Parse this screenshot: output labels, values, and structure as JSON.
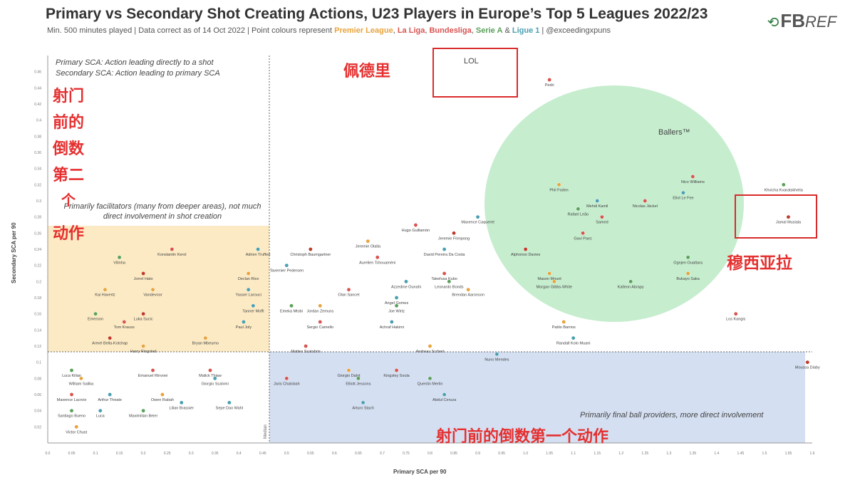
{
  "header": {
    "title": "Primary vs Secondary Shot Creating Actions, U23 Players in Europe’s Top 5 Leagues 2022/23",
    "subtitle_prefix": "Min. 500 minutes played | Data correct as of 14 Oct 2022 | Point colours represent ",
    "league_pl": "Premier League",
    "sep1": ", ",
    "league_ll": "La Liga",
    "sep2": ", ",
    "league_bl": "Bundesliga",
    "sep3": ", ",
    "league_sa": "Serie A",
    "sep4": " & ",
    "league_l1": "Ligue 1",
    "subtitle_suffix": " | @exceedingxpuns",
    "logo_fb": "FB",
    "logo_ref": "REF"
  },
  "colors": {
    "premier_league": "#e8a33c",
    "la_liga": "#d9534f",
    "bundesliga": "#c0392b",
    "serie_a": "#5aa05a",
    "ligue_1": "#4a9fb0",
    "annotation_red": "#e53030",
    "ballers_fill": "#a8e3b4",
    "facilitators_fill": "#fbe3b0",
    "providers_fill": "#c9d7ee"
  },
  "annotations": {
    "definition_primary": "Primary SCA: Action leading directly to a shot",
    "definition_secondary": "Secondary SCA: Action leading to primary SCA",
    "facilitators": "Primarily facilitators (many from deeper areas), not much direct involvement in shot creation",
    "providers": "Primarily final ball providers, more direct involvement",
    "ballers": "Ballers™",
    "lol": "LOL",
    "avg_label": "Median"
  },
  "chinese_labels": {
    "pedri": "佩德里",
    "secondary_col": [
      "射门",
      "前的",
      "倒数",
      "第二",
      "个",
      "动作"
    ],
    "primary": "射门前的倒数第一个动作",
    "musiala": "穆西亚拉"
  },
  "chart_data": {
    "type": "scatter",
    "title": "Primary vs Secondary Shot Creating Actions, U23 Players in Europe’s Top 5 Leagues 2022/23",
    "xlabel": "Primary SCA per 90",
    "ylabel": "Secondary SCA per 90",
    "xlim": [
      0.0,
      1.6
    ],
    "ylim": [
      0.0,
      0.48
    ],
    "x_ticks": [
      "0.0",
      "0.05",
      "0.1",
      "0.15",
      "0.2",
      "0.25",
      "0.3",
      "0.35",
      "0.4",
      "0.45",
      "0.5",
      "0.55",
      "0.6",
      "0.65",
      "0.7",
      "0.75",
      "0.8",
      "0.85",
      "0.9",
      "0.95",
      "1.0",
      "1.05",
      "1.1",
      "1.15",
      "1.2",
      "1.25",
      "1.3",
      "1.35",
      "1.4",
      "1.45",
      "1.5",
      "1.55",
      "1.6"
    ],
    "y_ticks": [
      "0.02",
      "0.04",
      "0.06",
      "0.08",
      "0.1",
      "0.12",
      "0.14",
      "0.16",
      "0.18",
      "0.2",
      "0.22",
      "0.24",
      "0.26",
      "0.28",
      "0.3",
      "0.32",
      "0.34",
      "0.36",
      "0.38",
      "0.4",
      "0.42",
      "0.44",
      "0.46"
    ],
    "median_x": 0.45,
    "median_y": 0.12,
    "points": [
      {
        "name": "Pedri",
        "league": "la_liga",
        "x": 1.05,
        "y": 0.45
      },
      {
        "name": "Nico Williams",
        "league": "la_liga",
        "x": 1.35,
        "y": 0.33
      },
      {
        "name": "Khvicha Kvaratskhelia",
        "league": "serie_a",
        "x": 1.54,
        "y": 0.32
      },
      {
        "name": "Phil Foden",
        "league": "premier_league",
        "x": 1.07,
        "y": 0.32
      },
      {
        "name": "Eliot Le Fee",
        "league": "ligue_1",
        "x": 1.33,
        "y": 0.31
      },
      {
        "name": "Mehdi Kamil",
        "league": "ligue_1",
        "x": 1.15,
        "y": 0.3
      },
      {
        "name": "Nicolas Jäckel",
        "league": "la_liga",
        "x": 1.25,
        "y": 0.3
      },
      {
        "name": "Rafael Leão",
        "league": "serie_a",
        "x": 1.11,
        "y": 0.29
      },
      {
        "name": "Jamal Musiala",
        "league": "bundesliga",
        "x": 1.55,
        "y": 0.28
      },
      {
        "name": "Samed",
        "league": "la_liga",
        "x": 1.16,
        "y": 0.28
      },
      {
        "name": "Gavi Paez",
        "league": "la_liga",
        "x": 1.12,
        "y": 0.26
      },
      {
        "name": "Hugo Guillamón",
        "league": "la_liga",
        "x": 0.77,
        "y": 0.27
      },
      {
        "name": "Jeremie Frimpong",
        "league": "bundesliga",
        "x": 0.85,
        "y": 0.26
      },
      {
        "name": "Maxence Caqueret",
        "league": "ligue_1",
        "x": 0.9,
        "y": 0.28
      },
      {
        "name": "Alphonso Davies",
        "league": "bundesliga",
        "x": 1.0,
        "y": 0.24
      },
      {
        "name": "Jeremie Olalla",
        "league": "premier_league",
        "x": 0.67,
        "y": 0.25
      },
      {
        "name": "David Pereira Da Costa",
        "league": "ligue_1",
        "x": 0.83,
        "y": 0.24
      },
      {
        "name": "Ognjen Ouattara",
        "league": "serie_a",
        "x": 1.34,
        "y": 0.23
      },
      {
        "name": "Christoph Baumgartner",
        "league": "bundesliga",
        "x": 0.55,
        "y": 0.24
      },
      {
        "name": "Aurelien Tchouaméni",
        "league": "la_liga",
        "x": 0.69,
        "y": 0.23
      },
      {
        "name": "Tavernier Pedersen",
        "league": "ligue_1",
        "x": 0.5,
        "y": 0.22
      },
      {
        "name": "Mason Mount",
        "league": "premier_league",
        "x": 1.05,
        "y": 0.21
      },
      {
        "name": "Bukayo Saka",
        "league": "premier_league",
        "x": 1.34,
        "y": 0.21
      },
      {
        "name": "Kalleon Abrapy",
        "league": "serie_a",
        "x": 1.22,
        "y": 0.2
      },
      {
        "name": "Morgan Gibbs-White",
        "league": "premier_league",
        "x": 1.06,
        "y": 0.2
      },
      {
        "name": "Takefusa Kubo",
        "league": "la_liga",
        "x": 0.83,
        "y": 0.21
      },
      {
        "name": "Leonardo Bonds",
        "league": "serie_a",
        "x": 0.84,
        "y": 0.2
      },
      {
        "name": "Azzedine Ounahi",
        "league": "ligue_1",
        "x": 0.75,
        "y": 0.2
      },
      {
        "name": "Brendan Aaronson",
        "league": "premier_league",
        "x": 0.88,
        "y": 0.19
      },
      {
        "name": "Olan Sancet",
        "league": "la_liga",
        "x": 0.63,
        "y": 0.19
      },
      {
        "name": "Angel Gomes",
        "league": "ligue_1",
        "x": 0.73,
        "y": 0.18
      },
      {
        "name": "Yasser Larouci",
        "league": "ligue_1",
        "x": 0.42,
        "y": 0.19
      },
      {
        "name": "Declan Rice",
        "league": "premier_league",
        "x": 0.42,
        "y": 0.21
      },
      {
        "name": "Adrien Truffert",
        "league": "ligue_1",
        "x": 0.44,
        "y": 0.24
      },
      {
        "name": "Joe Wirtz",
        "league": "serie_a",
        "x": 0.73,
        "y": 0.17
      },
      {
        "name": "Jordan Zemura",
        "league": "premier_league",
        "x": 0.57,
        "y": 0.17
      },
      {
        "name": "Achraf Hakimi",
        "league": "ligue_1",
        "x": 0.72,
        "y": 0.15
      },
      {
        "name": "Sergio Camello",
        "league": "la_liga",
        "x": 0.57,
        "y": 0.15
      },
      {
        "name": "Los Kangis",
        "league": "la_liga",
        "x": 1.44,
        "y": 0.16
      },
      {
        "name": "Pablo Barrios",
        "league": "premier_league",
        "x": 1.08,
        "y": 0.15
      },
      {
        "name": "Tanner Moffi",
        "league": "ligue_1",
        "x": 0.43,
        "y": 0.17
      },
      {
        "name": "Paul Joly",
        "league": "ligue_1",
        "x": 0.41,
        "y": 0.15
      },
      {
        "name": "Emeka Mtobi",
        "league": "serie_a",
        "x": 0.51,
        "y": 0.17
      },
      {
        "name": "Vitinha",
        "league": "serie_a",
        "x": 0.15,
        "y": 0.23
      },
      {
        "name": "Konstantin Kerol",
        "league": "la_liga",
        "x": 0.26,
        "y": 0.24
      },
      {
        "name": "Kai Havertz",
        "league": "premier_league",
        "x": 0.12,
        "y": 0.19
      },
      {
        "name": "Jorrel Hato",
        "league": "bundesliga",
        "x": 0.2,
        "y": 0.21
      },
      {
        "name": "Vandevoor",
        "league": "premier_league",
        "x": 0.22,
        "y": 0.19
      },
      {
        "name": "Emerson",
        "league": "serie_a",
        "x": 0.1,
        "y": 0.16
      },
      {
        "name": "Luka Sucic",
        "league": "bundesliga",
        "x": 0.2,
        "y": 0.16
      },
      {
        "name": "Tom Krauss",
        "league": "la_liga",
        "x": 0.16,
        "y": 0.15
      },
      {
        "name": "Armel Bella-Kotchap",
        "league": "bundesliga",
        "x": 0.13,
        "y": 0.13
      },
      {
        "name": "Harry Ringsted",
        "league": "premier_league",
        "x": 0.2,
        "y": 0.12
      },
      {
        "name": "Bryan Mbeumo",
        "league": "premier_league",
        "x": 0.33,
        "y": 0.13
      },
      {
        "name": "Emanuel Rinvoei",
        "league": "la_liga",
        "x": 0.22,
        "y": 0.09
      },
      {
        "name": "Luca Kilian",
        "league": "serie_a",
        "x": 0.05,
        "y": 0.09
      },
      {
        "name": "William Saliba",
        "league": "premier_league",
        "x": 0.07,
        "y": 0.08
      },
      {
        "name": "Arthur Theate",
        "league": "ligue_1",
        "x": 0.13,
        "y": 0.06
      },
      {
        "name": "Maxence Lacroix",
        "league": "la_liga",
        "x": 0.05,
        "y": 0.06
      },
      {
        "name": "Owen Rabah",
        "league": "premier_league",
        "x": 0.24,
        "y": 0.06
      },
      {
        "name": "Lilian Brassier",
        "league": "ligue_1",
        "x": 0.28,
        "y": 0.05
      },
      {
        "name": "Maximilian Beier",
        "league": "serie_a",
        "x": 0.2,
        "y": 0.04
      },
      {
        "name": "Santiago Bueno",
        "league": "serie_a",
        "x": 0.05,
        "y": 0.04
      },
      {
        "name": "Luca",
        "league": "ligue_1",
        "x": 0.11,
        "y": 0.04
      },
      {
        "name": "Victor Chust",
        "league": "premier_league",
        "x": 0.06,
        "y": 0.02
      },
      {
        "name": "Malick Thiaw",
        "league": "la_liga",
        "x": 0.34,
        "y": 0.09
      },
      {
        "name": "Giorgio Scalvini",
        "league": "ligue_1",
        "x": 0.35,
        "y": 0.08
      },
      {
        "name": "Sepe Dao Wahl",
        "league": "ligue_1",
        "x": 0.38,
        "y": 0.05
      },
      {
        "name": "Jaris Chalobah",
        "league": "la_liga",
        "x": 0.5,
        "y": 0.08
      },
      {
        "name": "Giorgio Dalot",
        "league": "premier_league",
        "x": 0.63,
        "y": 0.09
      },
      {
        "name": "Elliott Jessons",
        "league": "serie_a",
        "x": 0.65,
        "y": 0.08
      },
      {
        "name": "Arturo Stach",
        "league": "ligue_1",
        "x": 0.66,
        "y": 0.05
      },
      {
        "name": "Kingsley Soula",
        "league": "la_liga",
        "x": 0.73,
        "y": 0.09
      },
      {
        "name": "Quentin Merlin",
        "league": "serie_a",
        "x": 0.8,
        "y": 0.08
      },
      {
        "name": "Abdul Ceruza",
        "league": "ligue_1",
        "x": 0.83,
        "y": 0.06
      },
      {
        "name": "Nuno Mendes",
        "league": "ligue_1",
        "x": 0.94,
        "y": 0.11
      },
      {
        "name": "Moussa Diaby",
        "league": "bundesliga",
        "x": 1.59,
        "y": 0.1
      },
      {
        "name": "Andreas Scrbert",
        "league": "premier_league",
        "x": 0.8,
        "y": 0.12
      },
      {
        "name": "Matteo Scalobrin",
        "league": "la_liga",
        "x": 0.54,
        "y": 0.12
      },
      {
        "name": "Randall Kolo Muani",
        "league": "ligue_1",
        "x": 1.1,
        "y": 0.13
      }
    ]
  }
}
